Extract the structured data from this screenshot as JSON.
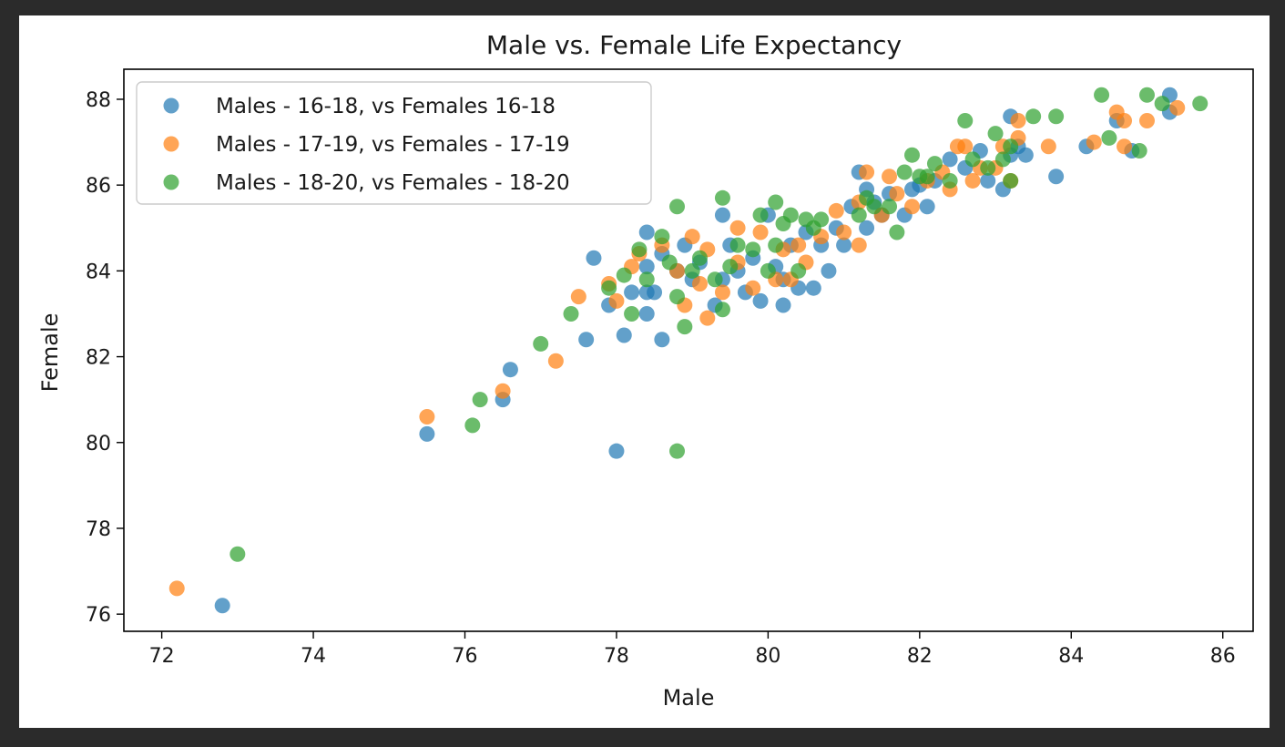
{
  "chart_data": {
    "type": "scatter",
    "title": "Male vs. Female Life Expectancy",
    "xlabel": "Male",
    "ylabel": "Female",
    "xlim": [
      71.5,
      86.4
    ],
    "ylim": [
      75.6,
      88.7
    ],
    "xticks": [
      72,
      74,
      76,
      78,
      80,
      82,
      84,
      86
    ],
    "yticks": [
      76,
      78,
      80,
      82,
      84,
      86,
      88
    ],
    "grid": false,
    "legend_position": "top-left",
    "series": [
      {
        "name": "Males - 16-18, vs Females 16-18",
        "color": "#1f77b4",
        "points": [
          [
            72.8,
            76.2
          ],
          [
            75.5,
            80.2
          ],
          [
            76.5,
            81.0
          ],
          [
            76.6,
            81.7
          ],
          [
            77.6,
            82.4
          ],
          [
            77.7,
            84.3
          ],
          [
            77.9,
            83.2
          ],
          [
            78.0,
            79.8
          ],
          [
            78.1,
            82.5
          ],
          [
            78.2,
            83.5
          ],
          [
            78.4,
            83.0
          ],
          [
            78.4,
            83.5
          ],
          [
            78.4,
            84.1
          ],
          [
            78.4,
            84.9
          ],
          [
            78.5,
            83.5
          ],
          [
            78.6,
            82.4
          ],
          [
            78.6,
            84.4
          ],
          [
            78.8,
            84.0
          ],
          [
            78.9,
            84.6
          ],
          [
            79.0,
            83.8
          ],
          [
            79.1,
            84.2
          ],
          [
            79.3,
            83.2
          ],
          [
            79.4,
            83.8
          ],
          [
            79.4,
            85.3
          ],
          [
            79.5,
            84.6
          ],
          [
            79.6,
            84.0
          ],
          [
            79.7,
            83.5
          ],
          [
            79.8,
            84.3
          ],
          [
            79.9,
            83.3
          ],
          [
            80.0,
            85.3
          ],
          [
            80.1,
            84.1
          ],
          [
            80.2,
            83.2
          ],
          [
            80.2,
            83.8
          ],
          [
            80.3,
            84.6
          ],
          [
            80.4,
            83.6
          ],
          [
            80.5,
            84.9
          ],
          [
            80.6,
            83.6
          ],
          [
            80.7,
            84.6
          ],
          [
            80.8,
            84.0
          ],
          [
            80.9,
            85.0
          ],
          [
            81.0,
            84.6
          ],
          [
            81.1,
            85.5
          ],
          [
            81.2,
            86.3
          ],
          [
            81.3,
            85.0
          ],
          [
            81.3,
            85.9
          ],
          [
            81.4,
            85.6
          ],
          [
            81.5,
            85.3
          ],
          [
            81.6,
            85.8
          ],
          [
            81.8,
            85.3
          ],
          [
            81.9,
            85.9
          ],
          [
            82.0,
            86.0
          ],
          [
            82.1,
            85.5
          ],
          [
            82.2,
            86.1
          ],
          [
            82.4,
            86.6
          ],
          [
            82.6,
            86.4
          ],
          [
            82.8,
            86.8
          ],
          [
            82.9,
            86.1
          ],
          [
            83.1,
            85.9
          ],
          [
            83.2,
            87.6
          ],
          [
            83.2,
            86.7
          ],
          [
            83.3,
            86.9
          ],
          [
            83.4,
            86.7
          ],
          [
            83.8,
            86.2
          ],
          [
            84.2,
            86.9
          ],
          [
            84.6,
            87.5
          ],
          [
            84.8,
            86.8
          ],
          [
            85.3,
            88.1
          ],
          [
            85.3,
            87.7
          ]
        ]
      },
      {
        "name": "Males - 17-19, vs Females - 17-19",
        "color": "#ff7f0e",
        "points": [
          [
            72.2,
            76.6
          ],
          [
            75.5,
            80.6
          ],
          [
            76.5,
            81.2
          ],
          [
            77.2,
            81.9
          ],
          [
            77.5,
            83.4
          ],
          [
            77.9,
            83.7
          ],
          [
            78.0,
            83.3
          ],
          [
            78.2,
            84.1
          ],
          [
            78.3,
            84.4
          ],
          [
            78.6,
            84.6
          ],
          [
            78.8,
            84.0
          ],
          [
            78.9,
            83.2
          ],
          [
            79.0,
            84.8
          ],
          [
            79.1,
            83.7
          ],
          [
            79.2,
            82.9
          ],
          [
            79.2,
            84.5
          ],
          [
            79.4,
            83.5
          ],
          [
            79.6,
            84.2
          ],
          [
            79.6,
            85.0
          ],
          [
            79.8,
            83.6
          ],
          [
            79.9,
            84.9
          ],
          [
            80.1,
            83.8
          ],
          [
            80.2,
            84.5
          ],
          [
            80.3,
            83.8
          ],
          [
            80.4,
            84.6
          ],
          [
            80.5,
            84.2
          ],
          [
            80.7,
            84.8
          ],
          [
            80.9,
            85.4
          ],
          [
            81.0,
            84.9
          ],
          [
            81.2,
            84.6
          ],
          [
            81.2,
            85.6
          ],
          [
            81.3,
            86.3
          ],
          [
            81.5,
            85.3
          ],
          [
            81.6,
            86.2
          ],
          [
            81.7,
            85.8
          ],
          [
            81.9,
            85.5
          ],
          [
            82.1,
            86.1
          ],
          [
            82.3,
            86.3
          ],
          [
            82.4,
            85.9
          ],
          [
            82.5,
            86.9
          ],
          [
            82.6,
            86.9
          ],
          [
            82.7,
            86.1
          ],
          [
            82.8,
            86.4
          ],
          [
            83.0,
            86.4
          ],
          [
            83.1,
            86.9
          ],
          [
            83.2,
            86.1
          ],
          [
            83.3,
            87.5
          ],
          [
            83.3,
            87.1
          ],
          [
            83.7,
            86.9
          ],
          [
            84.3,
            87.0
          ],
          [
            84.6,
            87.7
          ],
          [
            84.7,
            86.9
          ],
          [
            84.7,
            87.5
          ],
          [
            85.0,
            87.5
          ],
          [
            85.4,
            87.8
          ]
        ]
      },
      {
        "name": "Males - 18-20, vs Females - 18-20",
        "color": "#2ca02c",
        "points": [
          [
            73.0,
            77.4
          ],
          [
            76.1,
            80.4
          ],
          [
            76.2,
            81.0
          ],
          [
            77.0,
            82.3
          ],
          [
            77.4,
            83.0
          ],
          [
            77.9,
            83.6
          ],
          [
            78.1,
            83.9
          ],
          [
            78.2,
            83.0
          ],
          [
            78.3,
            84.5
          ],
          [
            78.4,
            83.8
          ],
          [
            78.6,
            84.8
          ],
          [
            78.7,
            84.2
          ],
          [
            78.8,
            83.4
          ],
          [
            78.8,
            85.5
          ],
          [
            78.8,
            79.8
          ],
          [
            78.9,
            82.7
          ],
          [
            79.0,
            84.0
          ],
          [
            79.1,
            84.3
          ],
          [
            79.3,
            83.8
          ],
          [
            79.4,
            85.7
          ],
          [
            79.4,
            83.1
          ],
          [
            79.5,
            84.1
          ],
          [
            79.6,
            84.6
          ],
          [
            79.8,
            84.5
          ],
          [
            79.9,
            85.3
          ],
          [
            80.0,
            84.0
          ],
          [
            80.1,
            85.6
          ],
          [
            80.1,
            84.6
          ],
          [
            80.2,
            85.1
          ],
          [
            80.3,
            85.3
          ],
          [
            80.4,
            84.0
          ],
          [
            80.5,
            85.2
          ],
          [
            80.6,
            85.0
          ],
          [
            80.7,
            85.2
          ],
          [
            81.2,
            85.3
          ],
          [
            81.3,
            85.7
          ],
          [
            81.4,
            85.5
          ],
          [
            81.6,
            85.5
          ],
          [
            81.7,
            84.9
          ],
          [
            81.8,
            86.3
          ],
          [
            81.9,
            86.7
          ],
          [
            82.0,
            86.2
          ],
          [
            82.1,
            86.2
          ],
          [
            82.2,
            86.5
          ],
          [
            82.4,
            86.1
          ],
          [
            82.6,
            87.5
          ],
          [
            82.7,
            86.6
          ],
          [
            82.9,
            86.4
          ],
          [
            83.0,
            87.2
          ],
          [
            83.1,
            86.6
          ],
          [
            83.2,
            86.9
          ],
          [
            83.2,
            86.1
          ],
          [
            83.5,
            87.6
          ],
          [
            83.8,
            87.6
          ],
          [
            84.4,
            88.1
          ],
          [
            84.5,
            87.1
          ],
          [
            84.9,
            86.8
          ],
          [
            85.0,
            88.1
          ],
          [
            85.2,
            87.9
          ],
          [
            85.7,
            87.9
          ]
        ]
      }
    ]
  }
}
